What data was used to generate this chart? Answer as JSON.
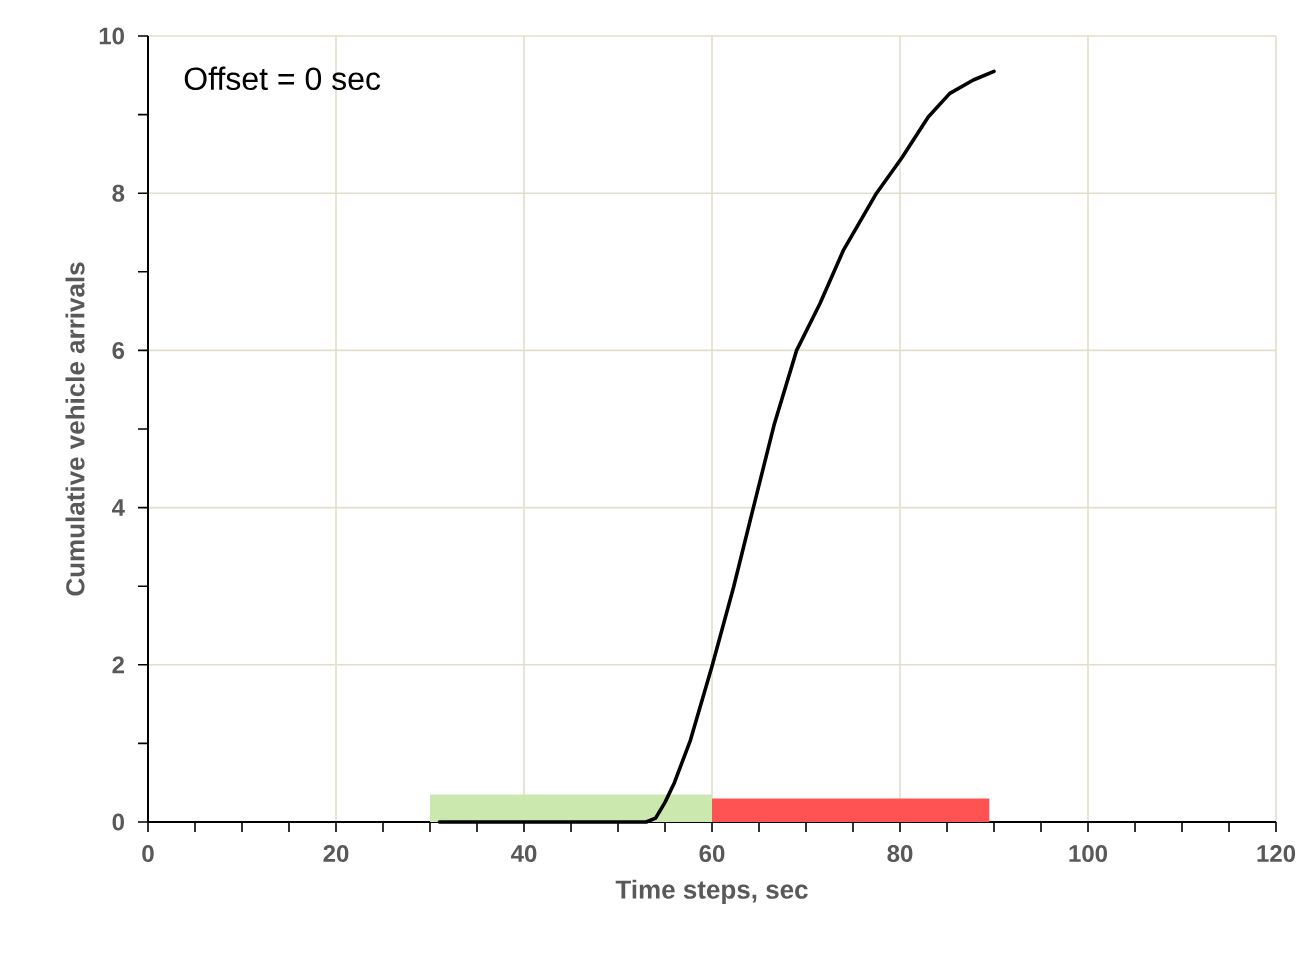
{
  "chart_data": {
    "type": "line",
    "xlabel": "Time steps, sec",
    "ylabel": "Cumulative vehicle arrivals",
    "annotations": [
      "Offset = 0 sec"
    ],
    "xlim": [
      0,
      120
    ],
    "xticks": [
      0,
      20,
      40,
      60,
      80,
      100,
      120
    ],
    "ylim": [
      0,
      10
    ],
    "yticks": [
      0,
      2,
      4,
      6,
      8,
      10
    ],
    "grid": true,
    "line_style": "solid",
    "marker": "none",
    "series": [
      {
        "type": "area",
        "color": "#cbe8ae",
        "x": [
          30,
          60
        ],
        "values": [
          0.35,
          0.35
        ]
      },
      {
        "type": "area",
        "color": "#ff5353",
        "x": [
          60,
          89.5
        ],
        "values": [
          0.3,
          0.3
        ]
      },
      {
        "color": "#000000",
        "x": [
          31,
          53,
          54,
          55,
          56,
          57.7,
          60,
          62.3,
          64.4,
          66.6,
          69,
          71.5,
          74,
          77.5,
          80.2,
          83,
          85.3,
          87.8,
          90
        ],
        "values": [
          0,
          0,
          0.05,
          0.25,
          0.5,
          1.04,
          1.98,
          2.99,
          4.0,
          5.05,
          6.0,
          6.6,
          7.28,
          8.0,
          8.45,
          8.97,
          9.27,
          9.44,
          9.55
        ]
      }
    ]
  }
}
